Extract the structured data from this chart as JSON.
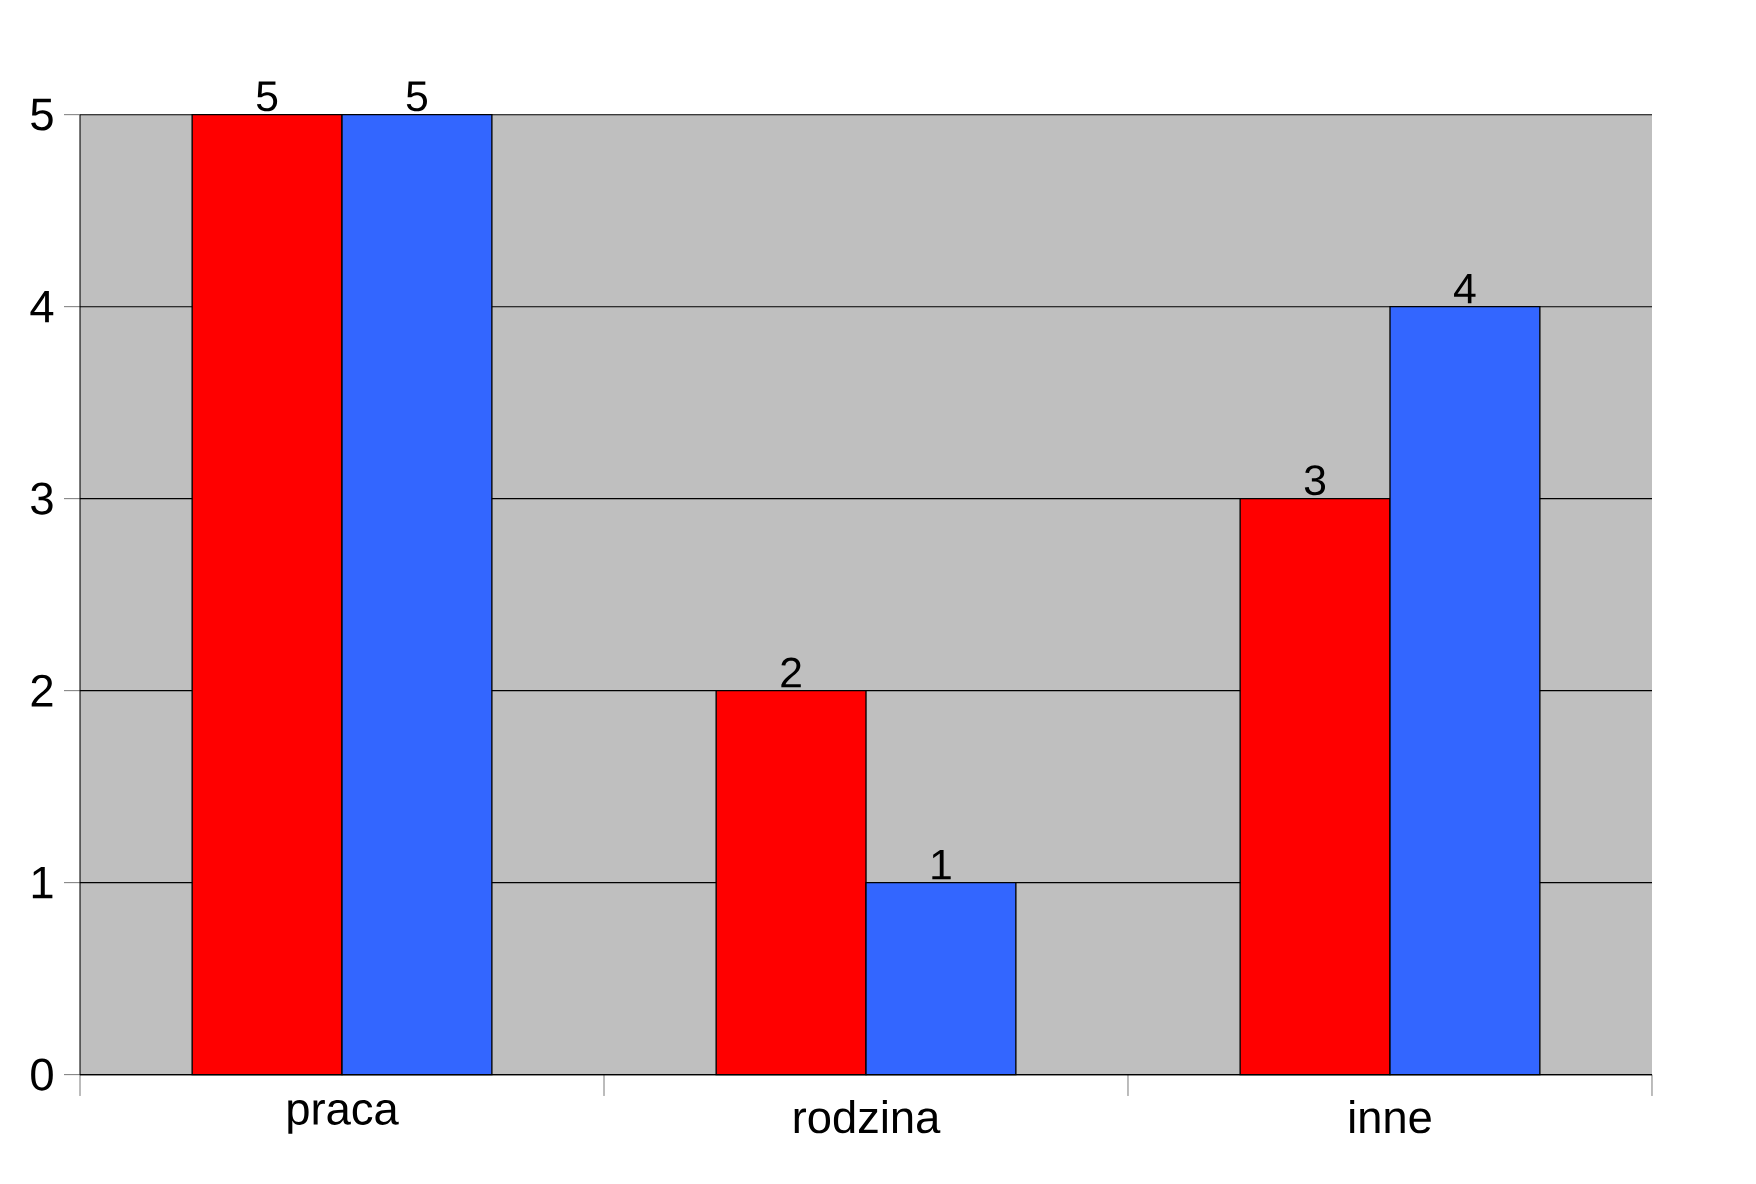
{
  "chart_data": {
    "type": "bar",
    "categories": [
      "praca",
      "rodzina",
      "inne"
    ],
    "series": [
      {
        "color": "#ff0000",
        "values": [
          5,
          2,
          3
        ]
      },
      {
        "color": "#3366ff",
        "values": [
          5,
          1,
          4
        ]
      }
    ],
    "ylim": [
      0,
      5
    ],
    "yticks": [
      0,
      1,
      2,
      3,
      4,
      5
    ],
    "grid": "y",
    "data_labels": true
  }
}
